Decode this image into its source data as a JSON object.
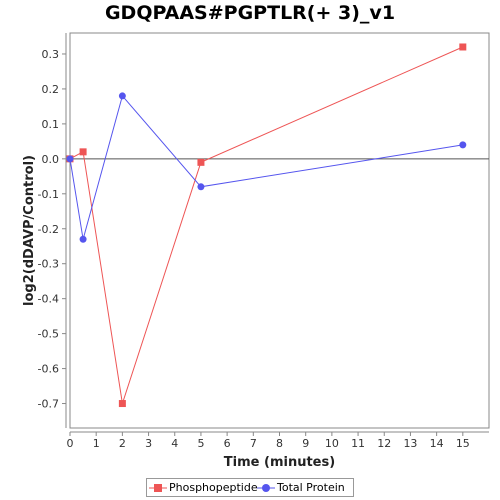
{
  "chart_data": {
    "type": "line",
    "title": "GDQPAAS#PGPTLR(+ 3)_v1",
    "xlabel": "Time (minutes)",
    "ylabel": "log2(dDAVP/Control)",
    "xlim": [
      0,
      16
    ],
    "ylim": [
      -0.77,
      0.36
    ],
    "x_ticks": [
      0,
      1,
      2,
      3,
      4,
      5,
      6,
      7,
      8,
      9,
      10,
      11,
      12,
      13,
      14,
      15
    ],
    "y_ticks": [
      0.3,
      0.2,
      0.1,
      0.0,
      -0.1,
      -0.2,
      -0.3,
      -0.4,
      -0.5,
      -0.6,
      -0.7
    ],
    "x_tick_labels": [
      "0",
      "1",
      "2",
      "3",
      "4",
      "5",
      "6",
      "7",
      "8",
      "9",
      "10",
      "11",
      "12",
      "13",
      "14",
      "15"
    ],
    "y_tick_labels": [
      "0.3",
      "0.2",
      "0.1",
      "0.0",
      "-0.1",
      "-0.2",
      "-0.3",
      "-0.4",
      "-0.5",
      "-0.6",
      "-0.7"
    ],
    "grid": false,
    "legend_position": "bottom",
    "series": [
      {
        "name": "Phosphopeptide",
        "color": "#ee5555",
        "marker": "square",
        "x": [
          0,
          0.5,
          2,
          5,
          15
        ],
        "y": [
          0.0,
          0.02,
          -0.7,
          -0.01,
          0.32
        ]
      },
      {
        "name": "Total Protein",
        "color": "#5555ee",
        "marker": "circle",
        "x": [
          0,
          0.5,
          2,
          5,
          15
        ],
        "y": [
          0.0,
          -0.23,
          0.18,
          -0.08,
          0.04
        ]
      }
    ]
  }
}
